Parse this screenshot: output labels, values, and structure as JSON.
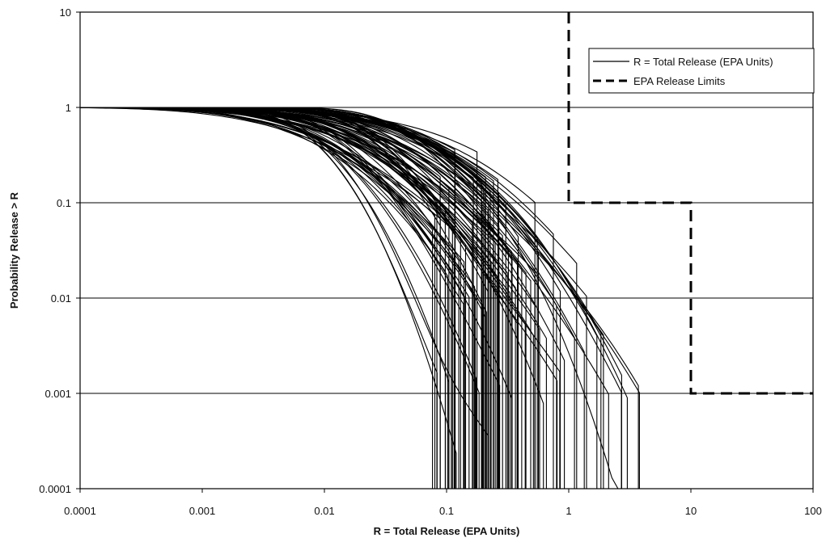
{
  "chart_data": {
    "type": "line",
    "xscale": "log",
    "yscale": "log",
    "xlim": [
      0.0001,
      100
    ],
    "ylim": [
      0.0001,
      10
    ],
    "xlabel": "R = Total Release (EPA Units)",
    "ylabel": "Probability Release > R",
    "x_ticks": [
      "0.0001",
      "0.001",
      "0.01",
      "0.1",
      "1",
      "10",
      "100"
    ],
    "y_ticks": [
      "10",
      "1",
      "0.1",
      "0.01",
      "0.001",
      "0.0001"
    ],
    "grid": "horizontal",
    "legend_position": "top-right",
    "legend": [
      {
        "label": "R = Total Release (EPA Units)",
        "style": "solid"
      },
      {
        "label": "EPA Release Limits",
        "style": "dashed"
      }
    ],
    "series": [
      {
        "name": "R = Total Release (EPA Units)",
        "style": "solid",
        "realizations": 100,
        "median_range": [
          0.006,
          0.05
        ],
        "spread_range": [
          0.32,
          0.78
        ],
        "tail_range": [
          0.07,
          0.45
        ],
        "x_max_range": [
          0.07,
          5
        ]
      },
      {
        "name": "EPA Release Limits",
        "style": "dashed",
        "x": [
          1,
          1,
          10,
          10,
          100
        ],
        "y": [
          10,
          0.1,
          0.1,
          0.001,
          0.001
        ]
      }
    ]
  }
}
